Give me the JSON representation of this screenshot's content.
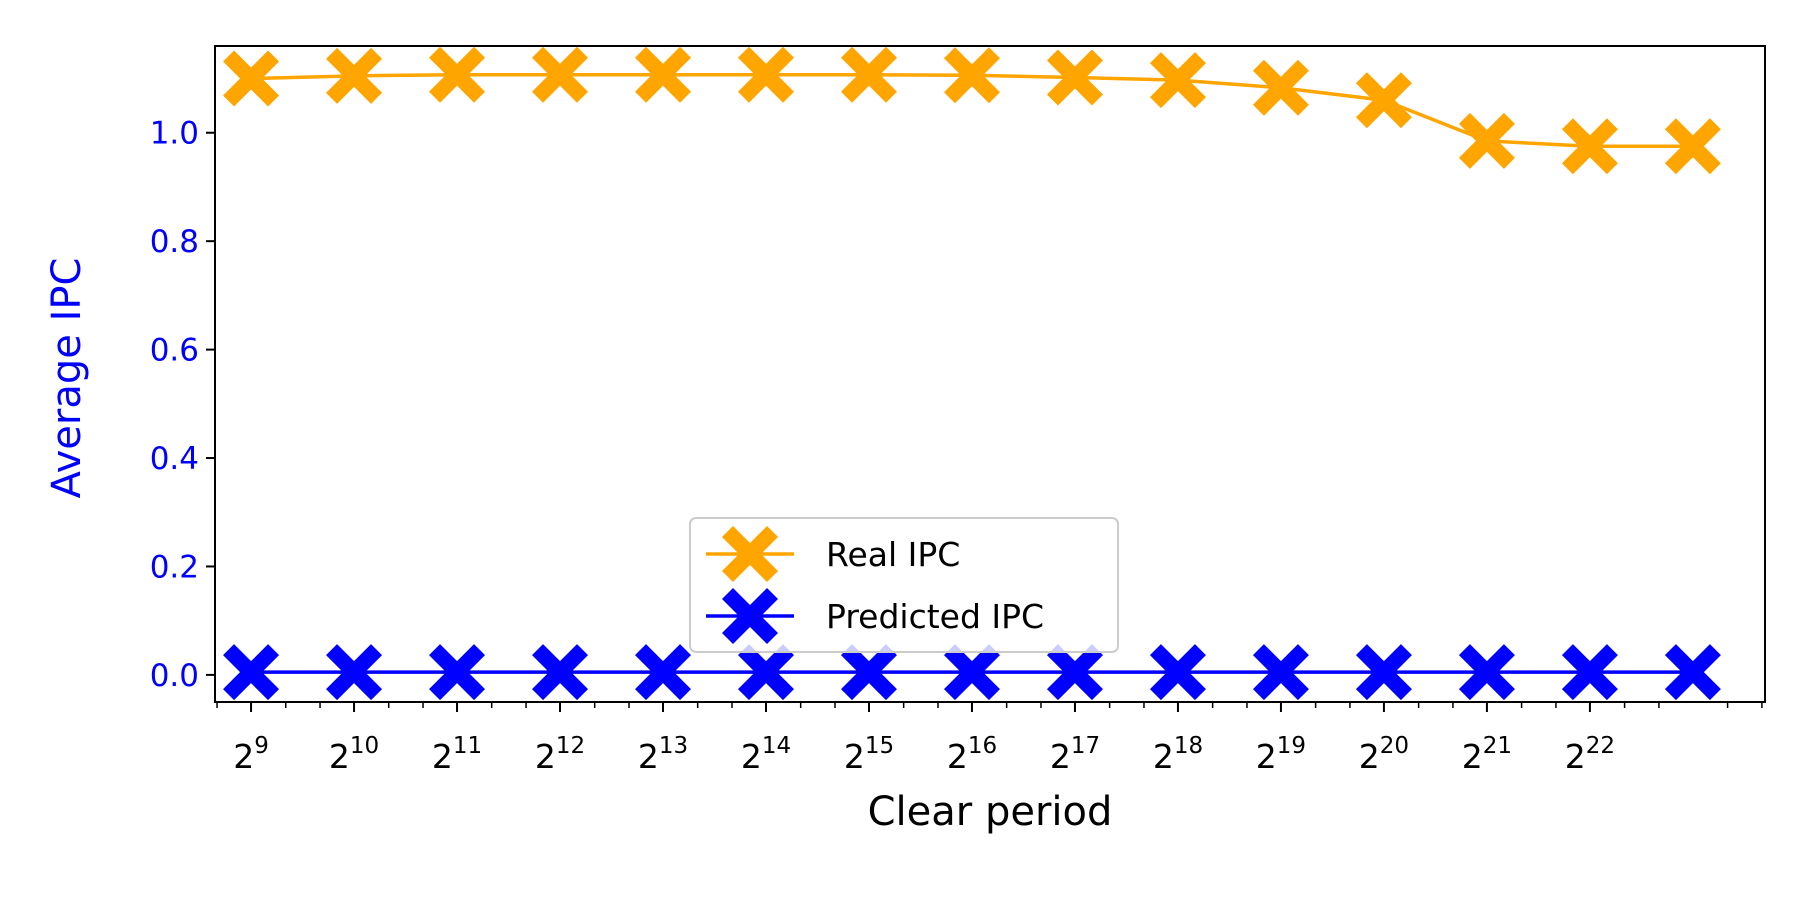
{
  "chart_data": {
    "type": "line",
    "xlabel": "Clear period",
    "ylabel": "Average IPC",
    "x_ticks": [
      {
        "base": "2",
        "exp": "9"
      },
      {
        "base": "2",
        "exp": "10"
      },
      {
        "base": "2",
        "exp": "11"
      },
      {
        "base": "2",
        "exp": "12"
      },
      {
        "base": "2",
        "exp": "13"
      },
      {
        "base": "2",
        "exp": "14"
      },
      {
        "base": "2",
        "exp": "15"
      },
      {
        "base": "2",
        "exp": "16"
      },
      {
        "base": "2",
        "exp": "17"
      },
      {
        "base": "2",
        "exp": "18"
      },
      {
        "base": "2",
        "exp": "19"
      },
      {
        "base": "2",
        "exp": "20"
      },
      {
        "base": "2",
        "exp": "21"
      },
      {
        "base": "2",
        "exp": "22"
      }
    ],
    "x_exponents": [
      9,
      10,
      11,
      12,
      13,
      14,
      15,
      16,
      17,
      18,
      19,
      20,
      21,
      22,
      23
    ],
    "x_minor_ticks": true,
    "ylim": [
      -0.05,
      1.16
    ],
    "y_ticks": [
      "0.0",
      "0.2",
      "0.4",
      "0.6",
      "0.8",
      "1.0"
    ],
    "y_tick_values": [
      0.0,
      0.2,
      0.4,
      0.6,
      0.8,
      1.0
    ],
    "grid": false,
    "legend": {
      "position": "lower-center"
    },
    "series": [
      {
        "name": "Real IPC",
        "color": "#ffa500",
        "marker": "X",
        "values": [
          1.1,
          1.105,
          1.107,
          1.107,
          1.107,
          1.107,
          1.107,
          1.106,
          1.102,
          1.097,
          1.083,
          1.06,
          0.985,
          0.975,
          0.975
        ]
      },
      {
        "name": "Predicted IPC",
        "color": "#0000ff",
        "marker": "X",
        "values": [
          0.005,
          0.005,
          0.005,
          0.005,
          0.005,
          0.005,
          0.005,
          0.005,
          0.005,
          0.005,
          0.005,
          0.005,
          0.005,
          0.005,
          0.005
        ]
      }
    ],
    "ylabel_color": "#0000ff",
    "ytick_color": "#0000ff"
  }
}
